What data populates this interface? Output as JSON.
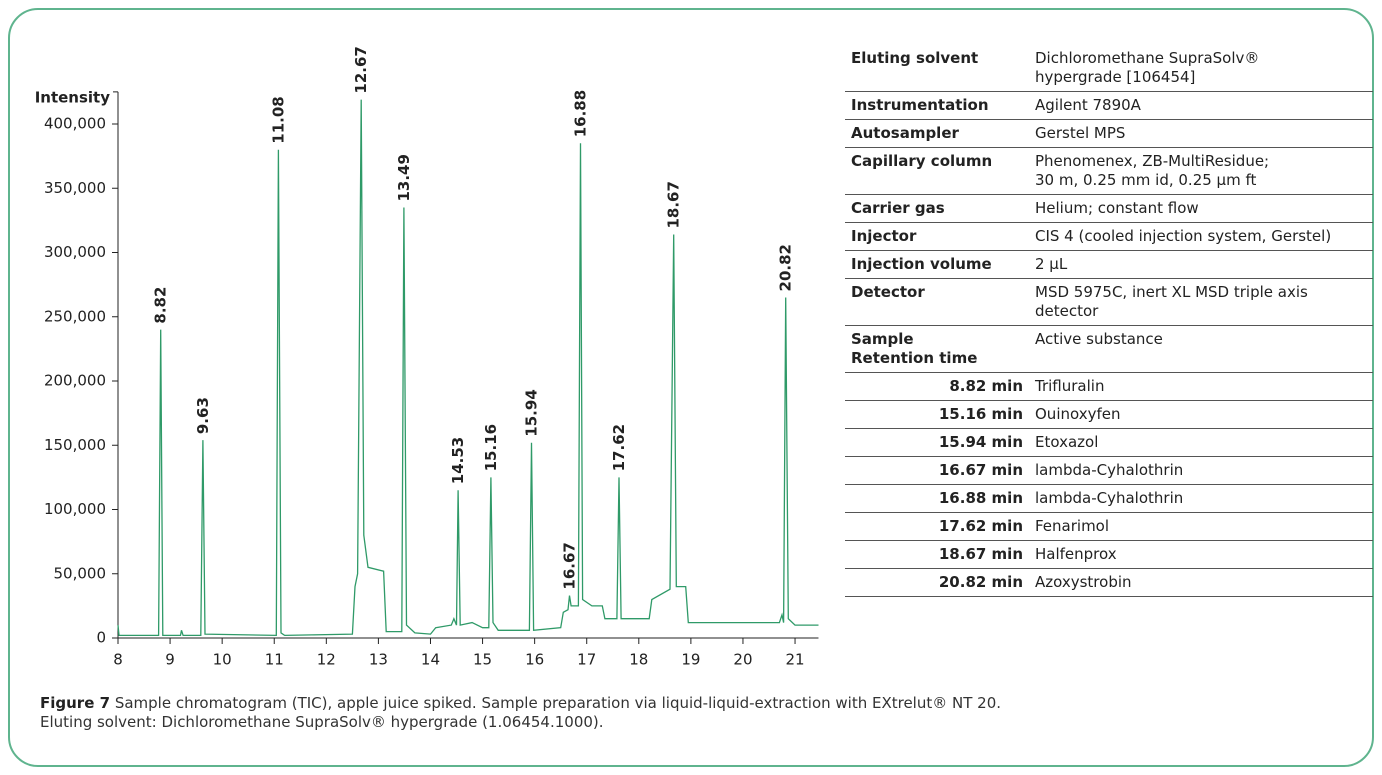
{
  "chart_data": {
    "type": "line",
    "y_label": "Intensity",
    "x": [
      8.0,
      8.02,
      8.78,
      8.82,
      8.86,
      9.2,
      9.22,
      9.25,
      9.59,
      9.63,
      9.67,
      11.04,
      11.08,
      11.13,
      11.2,
      12.5,
      12.55,
      12.6,
      12.67,
      12.72,
      12.8,
      13.1,
      13.15,
      13.45,
      13.49,
      13.54,
      13.7,
      14.0,
      14.1,
      14.4,
      14.45,
      14.5,
      14.53,
      14.57,
      14.8,
      15.0,
      15.12,
      15.16,
      15.2,
      15.3,
      15.9,
      15.94,
      15.98,
      16.5,
      16.55,
      16.64,
      16.67,
      16.7,
      16.84,
      16.88,
      16.92,
      17.1,
      17.3,
      17.35,
      17.58,
      17.62,
      17.66,
      18.2,
      18.25,
      18.6,
      18.67,
      18.72,
      18.9,
      18.95,
      20.7,
      20.75,
      20.78,
      20.82,
      20.87,
      21.0,
      21.45
    ],
    "series": [
      {
        "color": "#2f9a68",
        "values": [
          10000,
          2000,
          2000,
          240000,
          2000,
          2000,
          6000,
          2000,
          2000,
          154000,
          3000,
          2000,
          380000,
          4000,
          2000,
          3000,
          40000,
          50000,
          419000,
          80000,
          55000,
          52000,
          5000,
          5000,
          335000,
          10000,
          4000,
          3000,
          8000,
          10000,
          15000,
          10000,
          115000,
          10000,
          12000,
          8000,
          8000,
          125000,
          12000,
          6000,
          6000,
          152000,
          6000,
          8000,
          20000,
          22000,
          33000,
          25000,
          25000,
          385000,
          30000,
          25000,
          25000,
          15000,
          15000,
          125000,
          15000,
          15000,
          30000,
          38000,
          314000,
          40000,
          40000,
          12000,
          12000,
          18000,
          12000,
          265000,
          15000,
          10000,
          10000
        ]
      }
    ],
    "peaks": [
      8.82,
      9.63,
      11.08,
      12.67,
      13.49,
      14.53,
      15.16,
      15.94,
      16.67,
      16.88,
      17.62,
      18.67,
      20.82
    ],
    "xlim": [
      8,
      21.45
    ],
    "ylim": [
      0,
      425000
    ],
    "xticks": [
      8,
      9,
      10,
      11,
      12,
      13,
      14,
      15,
      16,
      17,
      18,
      19,
      20,
      21
    ],
    "yticks": [
      0,
      {
        "value": 50000,
        "label": "50,000"
      },
      {
        "value": 100000,
        "label": "100,000"
      },
      {
        "value": 150000,
        "label": "150,000"
      },
      {
        "value": 200000,
        "label": "200,000"
      },
      {
        "value": 250000,
        "label": "250,000"
      },
      {
        "value": 300000,
        "label": "300,000"
      },
      {
        "value": 350000,
        "label": "350,000"
      },
      {
        "value": 400000,
        "label": "400,000"
      }
    ]
  },
  "table": {
    "setup": [
      {
        "label": "Eluting solvent",
        "value": [
          "Dichloromethane SupraSolv®",
          "hypergrade [106454]"
        ]
      },
      {
        "label": "Instrumentation",
        "value": [
          "Agilent 7890A"
        ]
      },
      {
        "label": "Autosampler",
        "value": [
          "Gerstel MPS"
        ]
      },
      {
        "label": "Capillary column",
        "value": [
          "Phenomenex, ZB-MultiResidue;",
          "30 m, 0.25 mm id, 0.25 µm ft"
        ]
      },
      {
        "label": "Carrier gas",
        "value": [
          "Helium; constant flow"
        ]
      },
      {
        "label": "Injector",
        "value": [
          "CIS 4 (cooled injection system, Gerstel)"
        ]
      },
      {
        "label": "Injection volume",
        "value": [
          "2 µL"
        ]
      },
      {
        "label": "Detector",
        "value": [
          "MSD 5975C, inert XL MSD triple axis",
          "detector"
        ]
      }
    ],
    "header": {
      "label": [
        "Sample",
        "Retention time"
      ],
      "value": "Active substance"
    },
    "samples": [
      {
        "time": "8.82 min",
        "substance": "Trifluralin"
      },
      {
        "time": "15.16 min",
        "substance": "Ouinoxyfen"
      },
      {
        "time": "15.94 min",
        "substance": "Etoxazol"
      },
      {
        "time": "16.67 min",
        "substance": "lambda-Cyhalothrin"
      },
      {
        "time": "16.88 min",
        "substance": "lambda-Cyhalothrin"
      },
      {
        "time": "17.62 min",
        "substance": "Fenarimol"
      },
      {
        "time": "18.67 min",
        "substance": "Halfenprox"
      },
      {
        "time": "20.82 min",
        "substance": "Azoxystrobin"
      }
    ]
  },
  "caption": {
    "label": "Figure 7",
    "lines": [
      "Sample chromatogram (TIC), apple juice spiked. Sample preparation via liquid-liquid-extraction with EXtrelut® NT 20.",
      "Eluting solvent: Dichloromethane SupraSolv® hypergrade (1.06454.1000)."
    ]
  }
}
